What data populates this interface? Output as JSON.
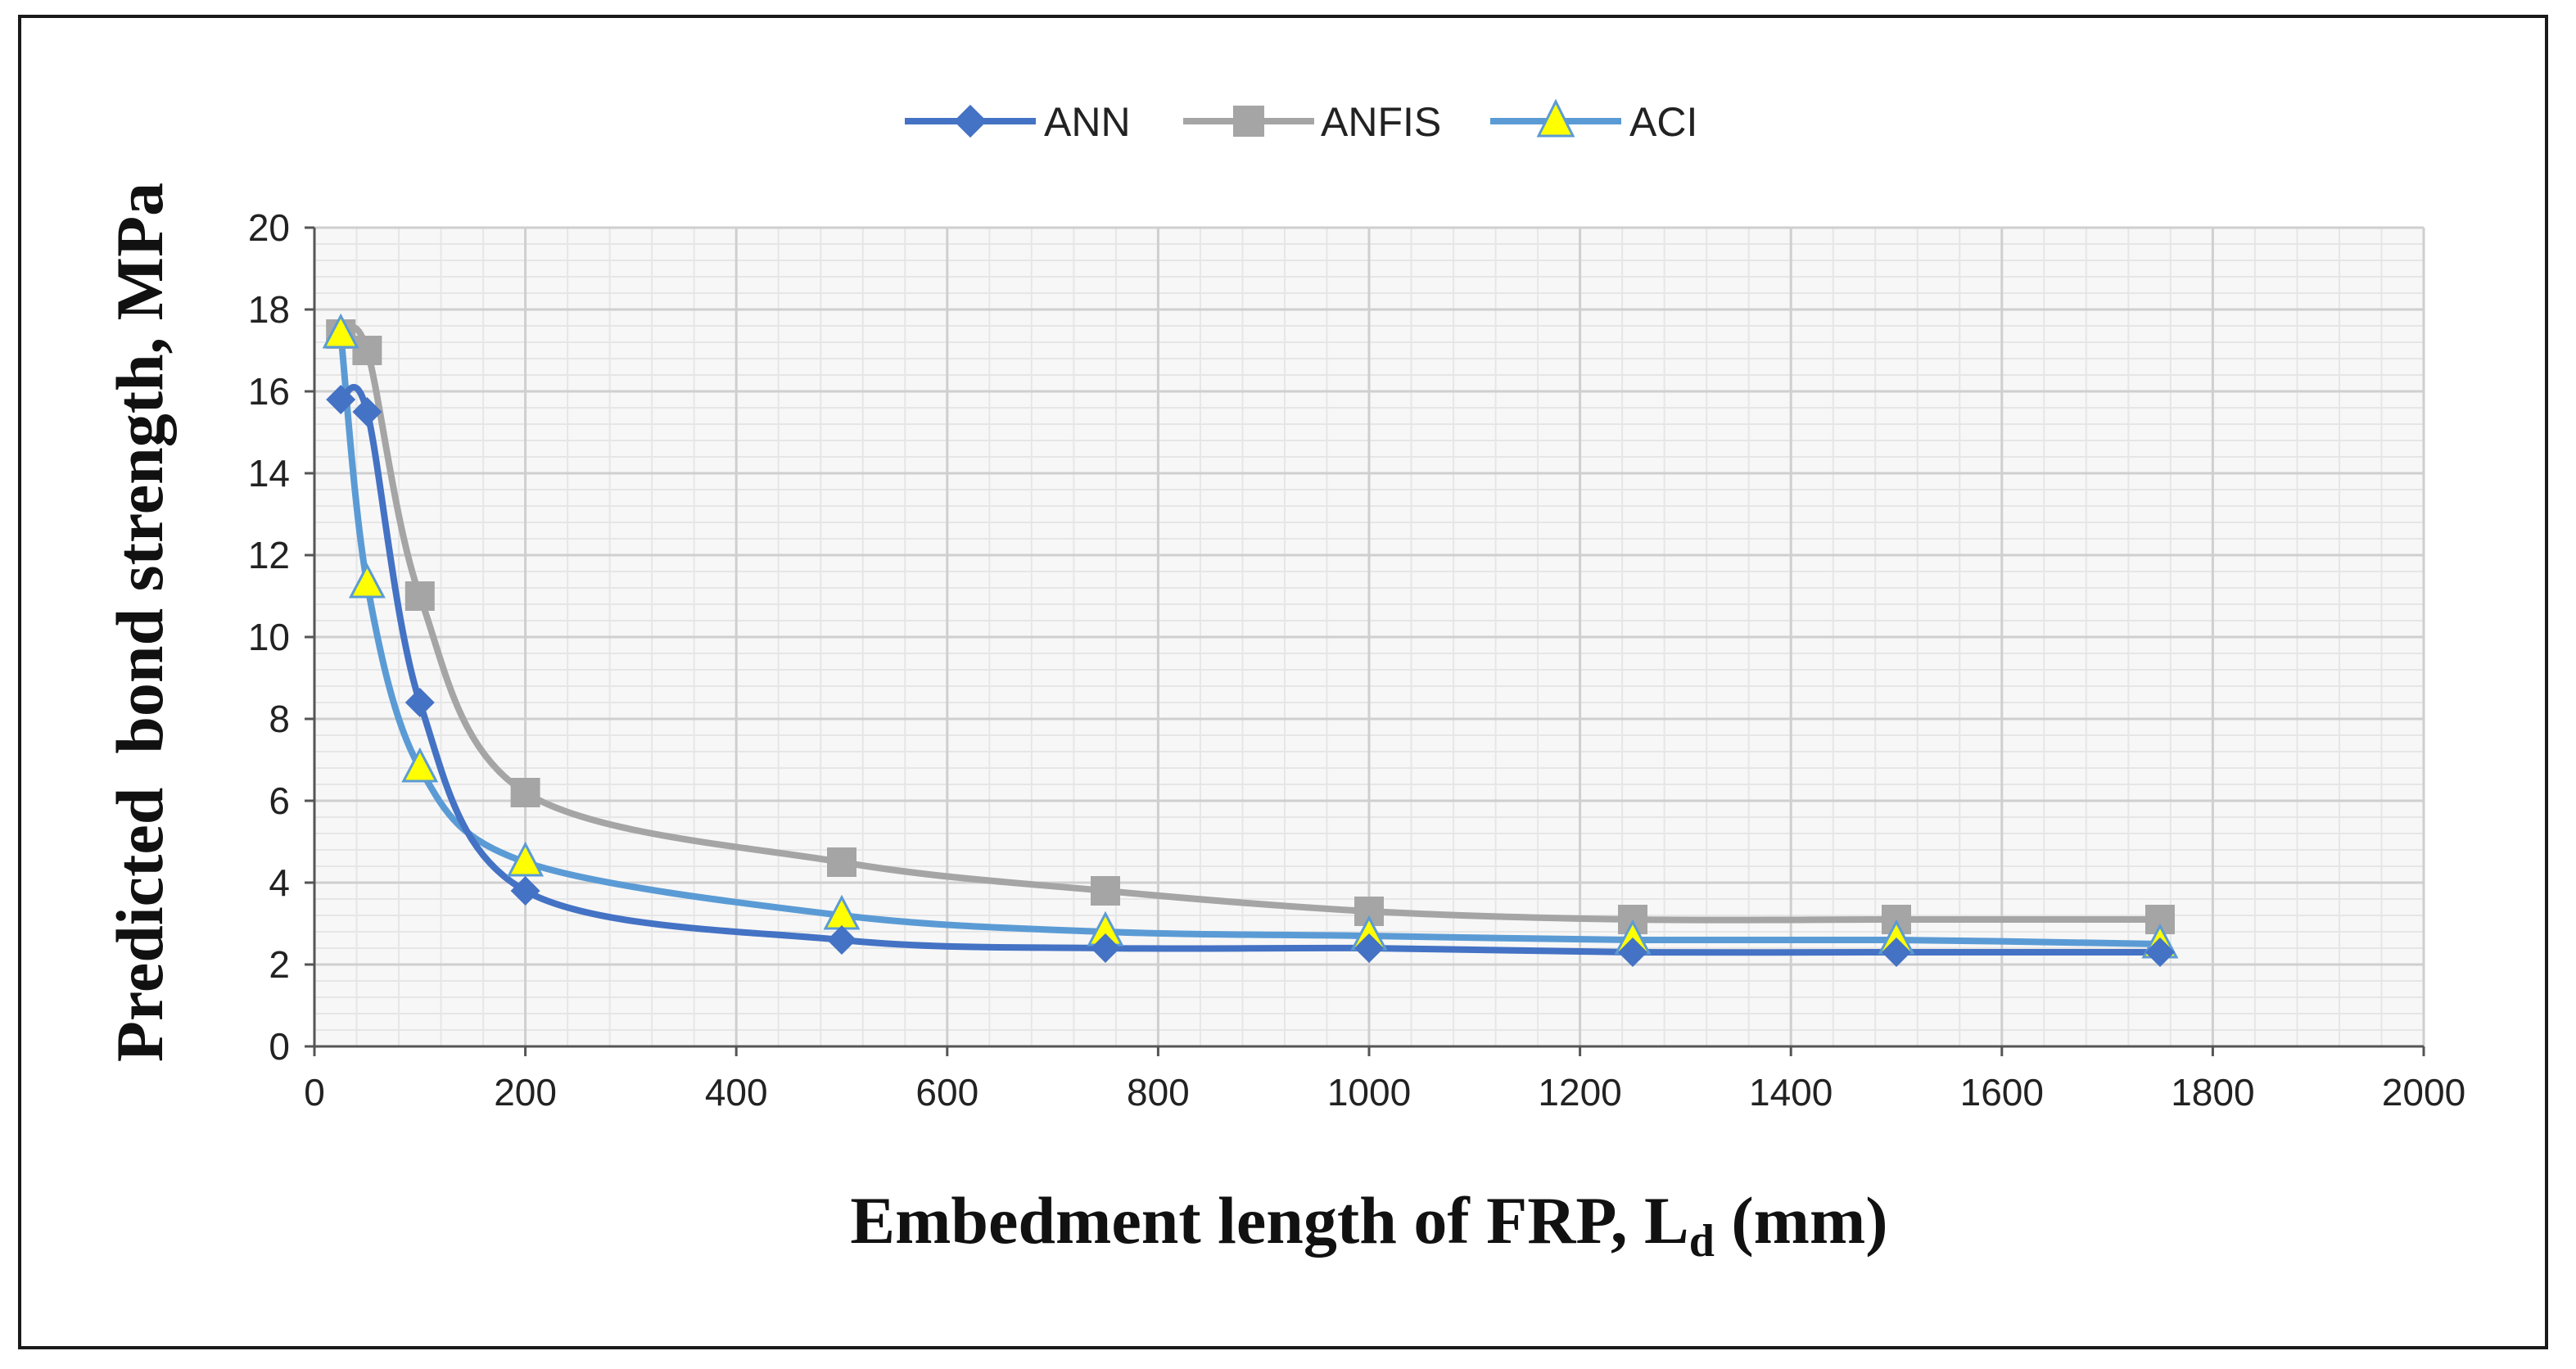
{
  "chart_data": {
    "type": "line",
    "title": "",
    "xlabel": "Embedment length of FRP, L",
    "xlabel_subscript": "d",
    "xlabel_suffix": " (mm)",
    "ylabel": "Predicted  bond strength, MPa",
    "xlim": [
      0,
      2000
    ],
    "ylim": [
      0,
      20
    ],
    "x_ticks": [
      0,
      200,
      400,
      600,
      800,
      1000,
      1200,
      1400,
      1600,
      1800,
      2000
    ],
    "y_ticks": [
      0,
      2,
      4,
      6,
      8,
      10,
      12,
      14,
      16,
      18,
      20
    ],
    "grid": true,
    "legend_position": "top-center",
    "x": [
      25,
      50,
      100,
      200,
      500,
      750,
      1000,
      1250,
      1500,
      1750
    ],
    "series": [
      {
        "name": "ANN",
        "marker": "diamond",
        "color": "#4472C4",
        "values": [
          15.8,
          15.5,
          8.4,
          3.8,
          2.6,
          2.4,
          2.4,
          2.3,
          2.3,
          2.3
        ]
      },
      {
        "name": "ANFIS",
        "marker": "square",
        "color": "#A5A5A5",
        "values": [
          17.4,
          17.0,
          11.0,
          6.2,
          4.5,
          3.8,
          3.3,
          3.1,
          3.1,
          3.1
        ]
      },
      {
        "name": "ACI",
        "marker": "triangle",
        "color": "#5B9BD5",
        "marker_fill": "#FFFF00",
        "values": [
          17.4,
          11.3,
          6.8,
          4.5,
          3.2,
          2.8,
          2.7,
          2.6,
          2.6,
          2.5
        ]
      }
    ]
  }
}
